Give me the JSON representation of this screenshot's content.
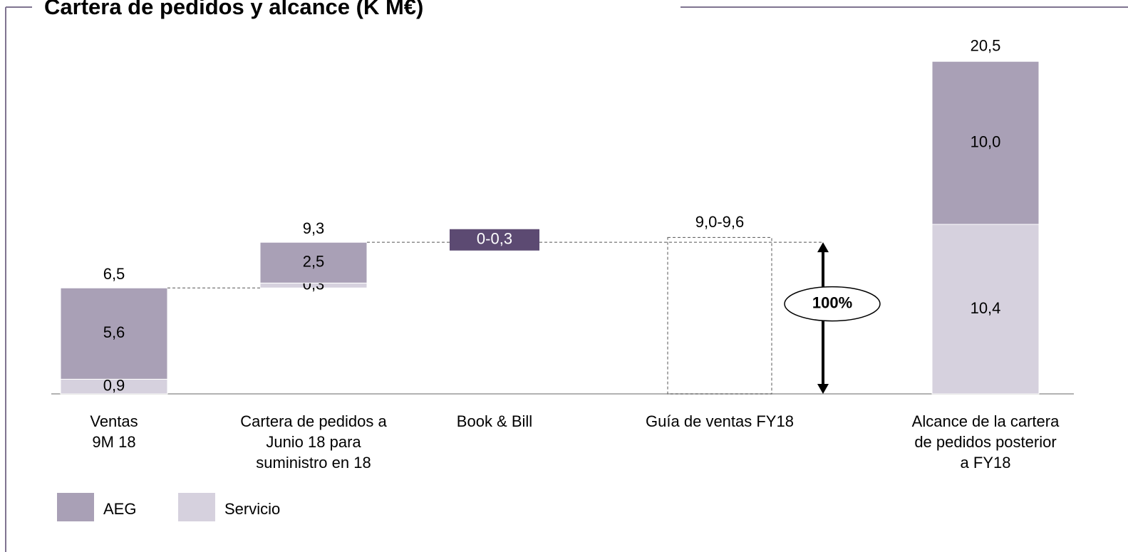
{
  "chart_data": {
    "type": "waterfall",
    "title": "Cartera de pedidos y alcance (K M€)",
    "categories": [
      [
        "Ventas",
        "9M 18"
      ],
      [
        "Cartera de pedidos a",
        "Junio 18 para",
        "suministro en 18"
      ],
      [
        "Book & Bill"
      ],
      [
        "Guía de ventas FY18"
      ],
      [
        "Alcance de la cartera",
        "de pedidos posterior",
        "a FY18"
      ]
    ],
    "series": [
      {
        "name": "Servicio",
        "color": "#d6d1de",
        "values": [
          0.9,
          0.3,
          null,
          null,
          10.4
        ],
        "value_labels": [
          "0,9",
          "0,3",
          null,
          null,
          "10,4"
        ]
      },
      {
        "name": "AEG",
        "color": "#a9a0b6",
        "values": [
          5.6,
          2.5,
          null,
          null,
          10.0
        ],
        "value_labels": [
          "5,6",
          "2,5",
          null,
          null,
          "10,0"
        ]
      }
    ],
    "floating": [
      false,
      true,
      false,
      false,
      false
    ],
    "totals": [
      6.5,
      9.3,
      null,
      null,
      20.5
    ],
    "totals_labels": [
      "6,5",
      "9,3",
      null,
      null,
      "20,5"
    ],
    "ranges": [
      null,
      null,
      {
        "low": 0,
        "high": 0.3,
        "label": "0-0,3",
        "color": "#5c4a72"
      },
      {
        "low": 9.0,
        "high": 9.6,
        "label": "9,0-9,6"
      },
      null
    ],
    "annotation": "100%",
    "ylim": [
      0,
      21.5
    ]
  }
}
